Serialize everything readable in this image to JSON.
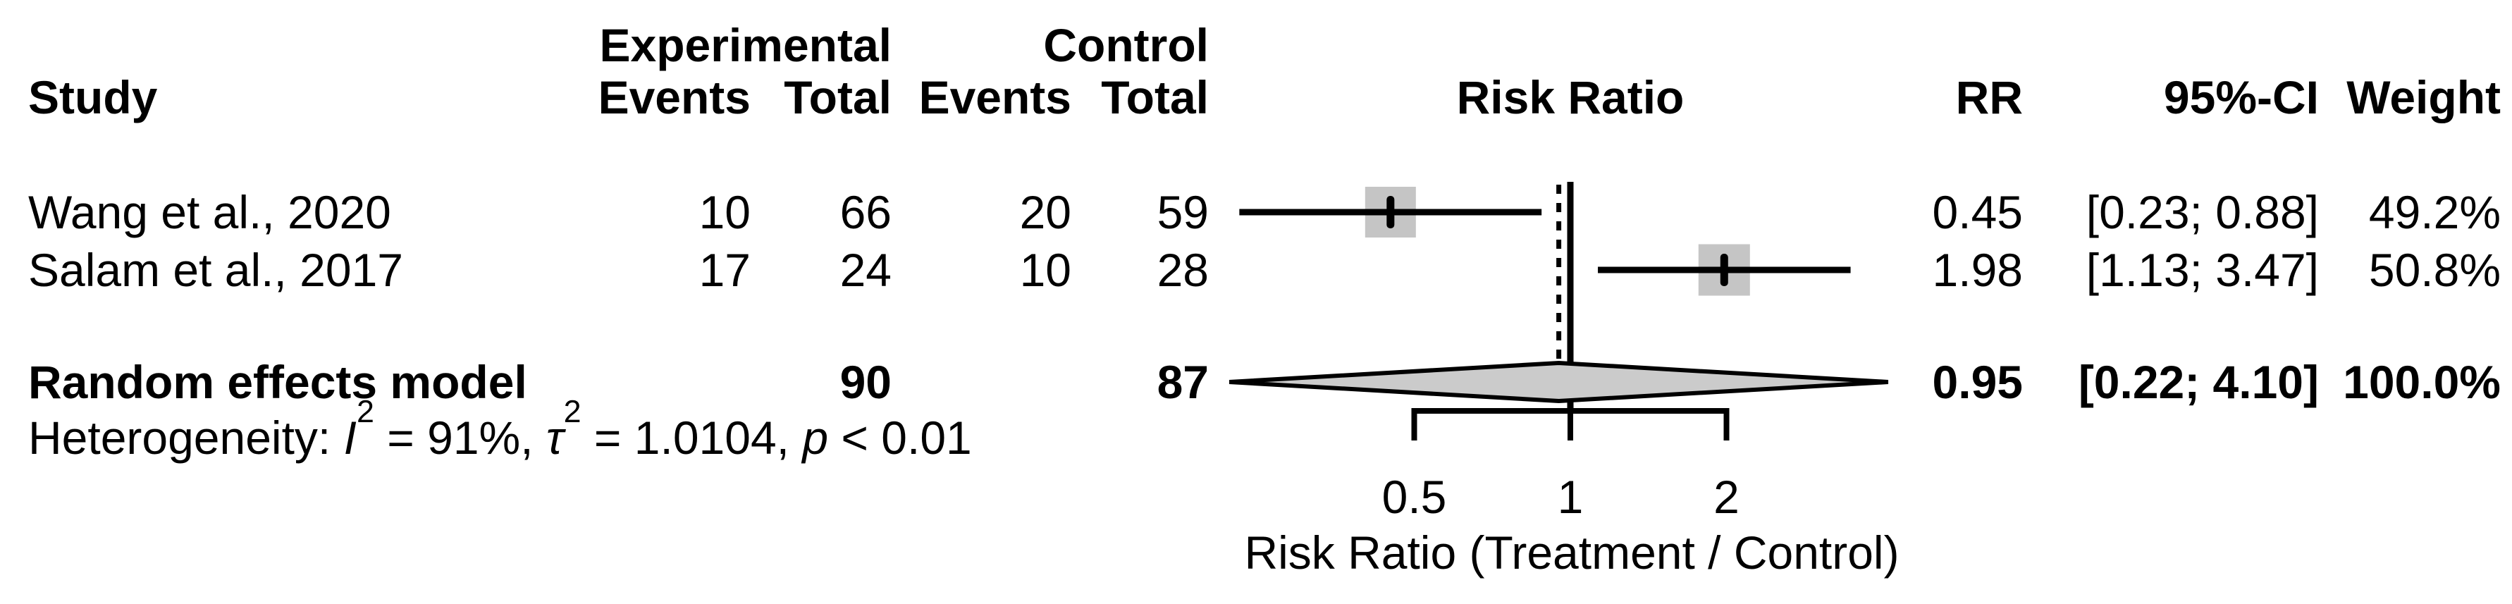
{
  "header": {
    "study": "Study",
    "exp_group": "Experimental",
    "ctrl_group": "Control",
    "events": "Events",
    "total": "Total",
    "risk_ratio": "Risk Ratio",
    "rr": "RR",
    "ci": "95%-CI",
    "weight": "Weight"
  },
  "chart_data": {
    "type": "forest",
    "x_scale": "log",
    "x_ticks": [
      0.5,
      1,
      2
    ],
    "x_tick_labels": [
      "0.5",
      "1",
      "2"
    ],
    "xlabel": "Risk Ratio (Treatment / Control)",
    "ref_line": 1,
    "marker_color": "#c5c5c5",
    "diamond_color": "#cbcbcb",
    "line_color": "#000000",
    "studies": [
      {
        "study": "Wang et al., 2020",
        "exp_events": 10,
        "exp_total": 66,
        "ctrl_events": 20,
        "ctrl_total": 59,
        "rr": 0.45,
        "ci_low": 0.23,
        "ci_high": 0.88,
        "weight_pct": 49.2
      },
      {
        "study": "Salam et al., 2017",
        "exp_events": 17,
        "exp_total": 24,
        "ctrl_events": 10,
        "ctrl_total": 28,
        "rr": 1.98,
        "ci_low": 1.13,
        "ci_high": 3.47,
        "weight_pct": 50.8
      }
    ],
    "summary": {
      "label": "Random effects model",
      "exp_total": 90,
      "ctrl_total": 87,
      "rr": 0.95,
      "ci_low": 0.22,
      "ci_high": 4.1,
      "weight_pct": 100.0
    },
    "heterogeneity_parts": [
      {
        "t": "Heterogeneity: "
      },
      {
        "t": "I",
        "i": 1
      },
      {
        "t": "2",
        "s": 1
      },
      {
        "t": " = 91%, "
      },
      {
        "t": "τ",
        "i": 1
      },
      {
        "t": "2",
        "s": 1
      },
      {
        "t": " = 1.0104, "
      },
      {
        "t": "p",
        "i": 1
      },
      {
        "t": " < 0.01"
      }
    ]
  }
}
